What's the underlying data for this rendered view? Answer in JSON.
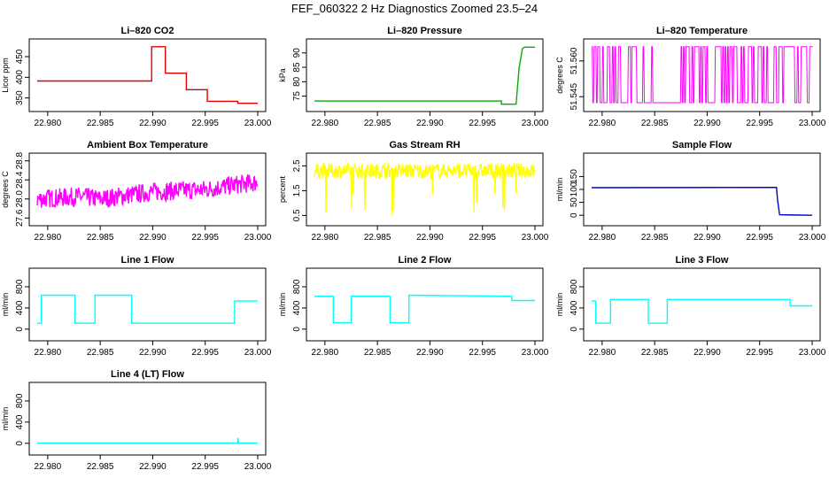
{
  "title": "FEF_060322  2 Hz Diagnostics Zoomed 23.5–24",
  "x_ticks": [
    "22.980",
    "22.985",
    "22.990",
    "22.995",
    "23.000"
  ],
  "chart_data": [
    {
      "type": "line",
      "title": "Li–820 CO2",
      "ylabel": "Licor ppm",
      "xlim": [
        22.979,
        23.0
      ],
      "ylim": [
        330,
        480
      ],
      "yticks": [
        "350",
        "400",
        "450"
      ],
      "yticks_v": [
        350,
        400,
        450
      ],
      "color": "#e00000",
      "series": [
        {
          "x": [
            22.979,
            22.9899,
            22.9899,
            22.9912,
            22.9912,
            22.9932,
            22.9932,
            22.9952,
            22.9952,
            22.9981,
            22.9981,
            23.0
          ],
          "values": [
            391,
            391,
            474,
            474,
            410,
            410,
            370,
            370,
            342,
            342,
            337,
            337
          ]
        }
      ]
    },
    {
      "type": "line",
      "title": "Li–820 Pressure",
      "ylabel": "kPa",
      "xlim": [
        22.979,
        23.0
      ],
      "ylim": [
        71.5,
        93
      ],
      "yticks": [
        "75",
        "80",
        "85",
        "90"
      ],
      "yticks_v": [
        75,
        80,
        85,
        90
      ],
      "color": "#00b000",
      "series": [
        {
          "x": [
            22.979,
            22.9968,
            22.9968,
            22.9982,
            22.9985,
            22.9988,
            22.999,
            23.0
          ],
          "values": [
            73.3,
            73.3,
            72.2,
            72.2,
            85,
            91.5,
            92,
            92
          ]
        }
      ]
    },
    {
      "type": "line",
      "title": "Li–820 Temperature",
      "ylabel": "degrees C",
      "xlim": [
        22.979,
        23.0
      ],
      "ylim": [
        51.541,
        51.567
      ],
      "yticks": [
        "51.545",
        "51.560"
      ],
      "yticks_v": [
        51.545,
        51.56
      ],
      "color": "#ff00ff",
      "series": [
        {
          "x": [
            22.979,
            23.0
          ],
          "values": [
            51.5425,
            51.566
          ]
        }
      ]
    },
    {
      "type": "line",
      "title": "Ambient Box Temperature",
      "ylabel": "degrees C",
      "xlim": [
        22.979,
        23.0
      ],
      "ylim": [
        27.55,
        28.85
      ],
      "yticks": [
        "27.6",
        "28.0",
        "28.4",
        "28.8"
      ],
      "yticks_v": [
        27.6,
        28.0,
        28.4,
        28.8
      ],
      "color": "#ff00ff",
      "series": [
        {
          "x": [
            22.979,
            22.983,
            22.985,
            22.99,
            22.995,
            22.998,
            23.0
          ],
          "values": [
            28.0,
            28.05,
            28.0,
            28.15,
            28.2,
            28.3,
            28.35
          ]
        }
      ]
    },
    {
      "type": "line",
      "title": "Gas Stream RH",
      "ylabel": "percent",
      "xlim": [
        22.979,
        23.0
      ],
      "ylim": [
        0.3,
        2.8
      ],
      "yticks": [
        "0.5",
        "1.5",
        "2.5"
      ],
      "yticks_v": [
        0.5,
        1.5,
        2.5
      ],
      "color": "#ffff00",
      "series": [
        {
          "x": [
            22.979,
            23.0
          ],
          "values": [
            2.3,
            2.3
          ]
        }
      ]
    },
    {
      "type": "line",
      "title": "Sample Flow",
      "ylabel": "ml/min",
      "xlim": [
        22.979,
        23.0
      ],
      "ylim": [
        -20,
        220
      ],
      "yticks": [
        "0",
        "50",
        "100",
        "150"
      ],
      "yticks_v": [
        0,
        50,
        100,
        150
      ],
      "color": "#0000cc",
      "series": [
        {
          "x": [
            22.979,
            22.9966,
            22.9967,
            22.9969,
            23.0
          ],
          "values": [
            107,
            108,
            60,
            2,
            0
          ]
        }
      ]
    },
    {
      "type": "line",
      "title": "Line 1 Flow",
      "ylabel": "ml/min",
      "xlim": [
        22.979,
        23.0
      ],
      "ylim": [
        -120,
        1050
      ],
      "yticks": [
        "0",
        "400",
        "800"
      ],
      "yticks_v": [
        0,
        400,
        800
      ],
      "color": "#00ffff",
      "series": [
        {
          "x": [
            22.979,
            22.9794,
            22.9794,
            22.9826,
            22.9826,
            22.9845,
            22.9845,
            22.988,
            22.988,
            22.9978,
            22.9978,
            23.0
          ],
          "values": [
            110,
            110,
            640,
            640,
            110,
            110,
            640,
            640,
            110,
            110,
            530,
            530
          ]
        }
      ]
    },
    {
      "type": "line",
      "title": "Line 2 Flow",
      "ylabel": "ml/min",
      "xlim": [
        22.979,
        23.0
      ],
      "ylim": [
        -120,
        1050
      ],
      "yticks": [
        "0",
        "400",
        "800"
      ],
      "yticks_v": [
        0,
        400,
        800
      ],
      "color": "#00ffff",
      "series": [
        {
          "x": [
            22.979,
            22.9808,
            22.9808,
            22.9825,
            22.9825,
            22.9862,
            22.9862,
            22.988,
            22.988,
            22.9978,
            22.9978,
            23.0
          ],
          "values": [
            620,
            620,
            120,
            120,
            620,
            620,
            120,
            120,
            640,
            620,
            540,
            540
          ]
        }
      ]
    },
    {
      "type": "line",
      "title": "Line 3 Flow",
      "ylabel": "ml/min",
      "xlim": [
        22.979,
        23.0
      ],
      "ylim": [
        -120,
        1050
      ],
      "yticks": [
        "0",
        "400",
        "800"
      ],
      "yticks_v": [
        0,
        400,
        800
      ],
      "color": "#00ffff",
      "series": [
        {
          "x": [
            22.979,
            22.9794,
            22.9794,
            22.9808,
            22.9808,
            22.9844,
            22.9844,
            22.9862,
            22.9862,
            22.9979,
            22.9979,
            23.0
          ],
          "values": [
            530,
            530,
            110,
            110,
            560,
            560,
            110,
            110,
            560,
            560,
            440,
            440
          ]
        }
      ]
    },
    {
      "type": "line",
      "title": "Line 4 (LT) Flow",
      "ylabel": "ml/min",
      "xlim": [
        22.979,
        23.0
      ],
      "ylim": [
        -120,
        1050
      ],
      "yticks": [
        "0",
        "400",
        "800"
      ],
      "yticks_v": [
        0,
        400,
        800
      ],
      "color": "#00ffff",
      "series": [
        {
          "x": [
            22.979,
            22.9981,
            22.9981,
            22.9982,
            22.9983,
            23.0
          ],
          "values": [
            5,
            5,
            100,
            5,
            5,
            5
          ]
        }
      ]
    }
  ]
}
